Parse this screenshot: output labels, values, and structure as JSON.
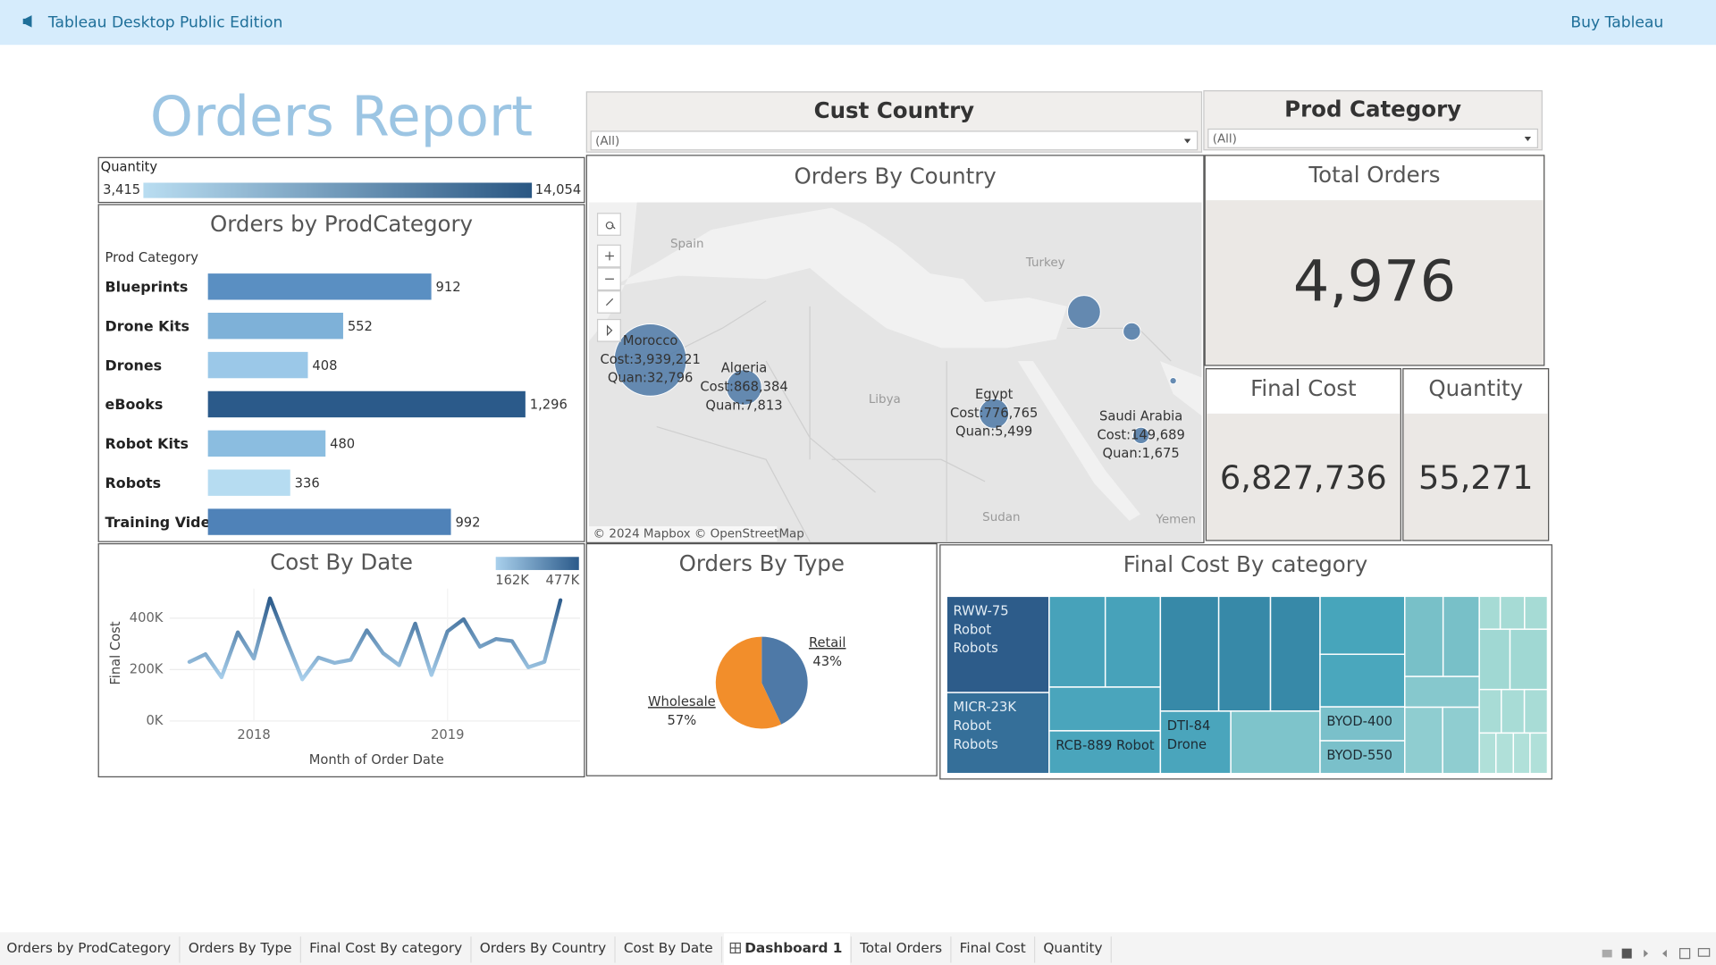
{
  "header": {
    "app_name": "Tableau Desktop Public Edition",
    "link": "Buy Tableau"
  },
  "title": "Orders Report",
  "filters": [
    {
      "label": "Cust Country",
      "value": "(All)"
    },
    {
      "label": "Prod Category",
      "value": "(All)"
    }
  ],
  "legend": {
    "title": "Quantity",
    "min": "3,415",
    "max": "14,054",
    "colors": [
      "#b9ddf1",
      "#2a5783"
    ]
  },
  "kpis": [
    {
      "title": "Total Orders",
      "value": "4,976"
    },
    {
      "title": "Final Cost",
      "value": "6,827,736"
    },
    {
      "title": "Quantity",
      "value": "55,271"
    }
  ],
  "tabs": {
    "items": [
      "Orders by ProdCategory",
      "Orders By Type",
      "Final Cost By category",
      "Orders By Country",
      "Cost By Date",
      "Dashboard 1",
      "Total Orders",
      "Final Cost",
      "Quantity"
    ],
    "active_index": 5
  },
  "chart_data": [
    {
      "type": "bar",
      "title": "Orders by ProdCategory",
      "axis_label": "Prod Category",
      "categories": [
        "Blueprints",
        "Drone Kits",
        "Drones",
        "eBooks",
        "Robot Kits",
        "Robots",
        "Training Videos"
      ],
      "values": [
        912,
        552,
        408,
        1296,
        480,
        336,
        992
      ],
      "value_labels": [
        "912",
        "552",
        "408",
        "1,296",
        "480",
        "336",
        "992"
      ],
      "colors": [
        "#5a8fc2",
        "#7eb1d8",
        "#9bc8e8",
        "#2b5a8a",
        "#8bbde0",
        "#b6dcf1",
        "#4f82b8"
      ],
      "xlim": [
        0,
        1519
      ]
    },
    {
      "type": "line",
      "title": "Cost By Date",
      "x_label": "Month of Order Date",
      "y_label": "Final Cost",
      "x": [
        2017.667,
        2017.75,
        2017.833,
        2017.917,
        2018,
        2018.083,
        2018.167,
        2018.25,
        2018.333,
        2018.417,
        2018.5,
        2018.583,
        2018.667,
        2018.75,
        2018.833,
        2018.917,
        2019,
        2019.083,
        2019.167,
        2019.25,
        2019.333,
        2019.417,
        2019.5,
        2019.583
      ],
      "values": [
        230000,
        260000,
        170000,
        345000,
        243000,
        477000,
        315000,
        162000,
        247000,
        226000,
        238000,
        353000,
        264000,
        217000,
        379000,
        179000,
        349000,
        396000,
        289000,
        319000,
        311000,
        209000,
        230000,
        470000
      ],
      "xlim": [
        2017.565,
        2019.684
      ],
      "xticks": [
        2018,
        2019
      ],
      "ylim": [
        0,
        515000
      ],
      "yticks": [
        {
          "value": 0,
          "label": "0K"
        },
        {
          "value": 200000,
          "label": "200K"
        },
        {
          "value": 400000,
          "label": "400K"
        }
      ],
      "color_legend": {
        "min": {
          "value": 162000,
          "label": "162K"
        },
        "max": {
          "value": 477000,
          "label": "477K"
        }
      },
      "colors": [
        "#a9d0ec",
        "#2b5a8a"
      ],
      "grid": true
    },
    {
      "type": "pie",
      "title": "Orders By Type",
      "categories": [
        "Retail",
        "Wholesale"
      ],
      "values": [
        43,
        57
      ],
      "value_labels": [
        "43%",
        "57%"
      ],
      "colors": [
        "#4e79a7",
        "#f28e2b"
      ]
    },
    {
      "type": "map",
      "title": "Orders By Country",
      "names": [
        "Morocco",
        "Algeria",
        "Egypt",
        "Saudi Arabia",
        null,
        null,
        null
      ],
      "lon": [
        -8.0,
        2.2,
        29.4,
        45.4,
        39.2,
        44.4,
        48.9
      ],
      "lat": [
        29.4,
        26.9,
        24.5,
        22.5,
        33.8,
        32.0,
        27.5
      ],
      "quantities": [
        32796,
        7813,
        5499,
        1675,
        6800,
        1900,
        270
      ],
      "quantity_labels": [
        "Quan:32,796",
        "Quan:7,813",
        "Quan:5,499",
        "Quan:1,675",
        null,
        null,
        null
      ],
      "costs": [
        3939221,
        868384,
        776765,
        149689,
        null,
        null,
        null
      ],
      "cost_labels": [
        "Cost:3,939,221",
        "Cost:868,384",
        "Cost:776,765",
        "Cost:149,689",
        null,
        null,
        null
      ],
      "color": "#4e79a7",
      "xlim": [
        -14.7,
        52.0
      ],
      "ylim": [
        12.8,
        43.8
      ],
      "place_labels": [
        {
          "text": "Spain",
          "lon": -4.0,
          "lat": 40.0
        },
        {
          "text": "Turkey",
          "lon": 35.0,
          "lat": 38.3
        },
        {
          "text": "Libya",
          "lon": 17.5,
          "lat": 25.8
        },
        {
          "text": "Sudan",
          "lon": 30.2,
          "lat": 15.0
        },
        {
          "text": "Yemen",
          "lon": 49.2,
          "lat": 14.8
        }
      ],
      "attribution": "© 2024 Mapbox © OpenStreetMap"
    },
    {
      "type": "treemap",
      "title": "Final Cost By category",
      "groups": [
        {
          "rows": [
            [
              {
                "label": [
                  "RWW-75",
                  "Robot",
                  "Robots"
                ],
                "value": 629000,
                "color": "#2d5c8a"
              }
            ],
            [
              {
                "label": [
                  "MICR-23K",
                  "Robot",
                  "Robots"
                ],
                "value": 529000,
                "color": "#356f99"
              }
            ]
          ]
        },
        {
          "rows": [
            [
              {
                "value": 325000,
                "color": "#47a2ba"
              },
              {
                "value": 319000,
                "color": "#47a2ba"
              }
            ],
            [
              {
                "value": 310000,
                "color": "#4aa5bc"
              }
            ],
            [
              {
                "label": [
                  "RCB-889 Robot"
                ],
                "value": 303000,
                "color": "#4aa5bc"
              }
            ]
          ]
        },
        {
          "rows": [
            [
              {
                "value": 427000,
                "color": "#3789a8"
              },
              {
                "value": 379000,
                "color": "#3789a8"
              },
              {
                "value": 363000,
                "color": "#3789a8"
              }
            ],
            [
              {
                "label": [
                  "DTI-84",
                  "Drone"
                ],
                "value": 280000,
                "color": "#4aa5bc"
              },
              {
                "value": 355000,
                "color": "#7ec4cb"
              }
            ]
          ]
        },
        {
          "rows": [
            [
              {
                "value": 313000,
                "color": "#47a5bb"
              }
            ],
            [
              {
                "value": 284000,
                "color": "#4aa7bd"
              }
            ],
            [
              {
                "label": [
                  "BYOD-400"
                ],
                "value": 183000,
                "color": "#7ac0ca"
              }
            ],
            [
              {
                "label": [
                  "BYOD-550"
                ],
                "value": 177000,
                "color": "#7ac0ca"
              }
            ]
          ]
        },
        {
          "rows": [
            [
              {
                "value": 196000,
                "color": "#78c0c8"
              },
              {
                "value": 185000,
                "color": "#78c0c8"
              }
            ],
            [
              {
                "value": 146000,
                "color": "#86c8cd"
              }
            ],
            [
              {
                "value": 160000,
                "color": "#8fcdd0"
              },
              {
                "value": 155000,
                "color": "#8fcdd0"
              }
            ]
          ]
        },
        {
          "rows": [
            [
              {
                "value": 44000,
                "color": "#a6dbd5"
              },
              {
                "value": 51000,
                "color": "#a6dbd5"
              },
              {
                "value": 48000,
                "color": "#a6dbd5"
              }
            ],
            [
              {
                "value": 118000,
                "color": "#a0d8d3"
              },
              {
                "value": 144000,
                "color": "#a0d8d3"
              }
            ],
            [
              {
                "value": 61000,
                "color": "#a8dcd6"
              },
              {
                "value": 64000,
                "color": "#a8dcd6"
              },
              {
                "value": 64000,
                "color": "#a8dcd6"
              }
            ],
            [
              {
                "value": 43000,
                "color": "#b0e0d9"
              },
              {
                "value": 45000,
                "color": "#b0e0d9"
              },
              {
                "value": 43000,
                "color": "#b0e0d9"
              },
              {
                "value": 45000,
                "color": "#b0e0d9"
              }
            ]
          ]
        }
      ]
    }
  ]
}
